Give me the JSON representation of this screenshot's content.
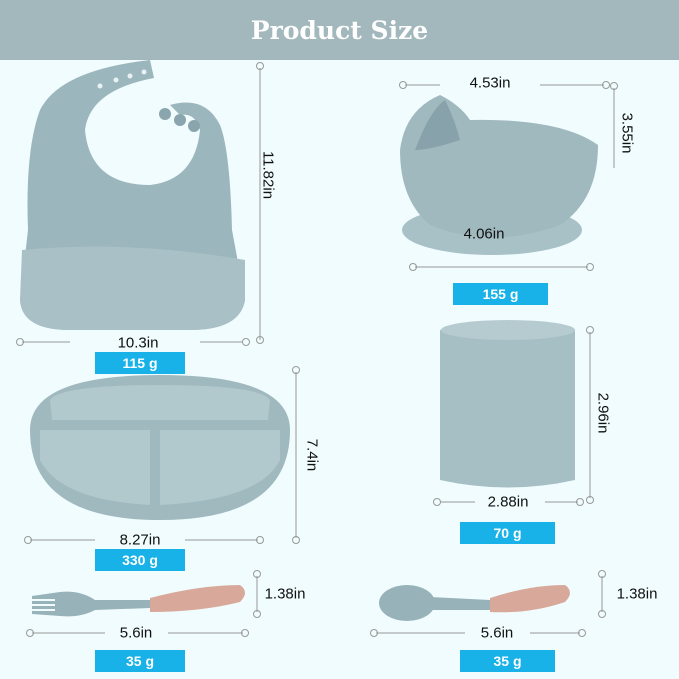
{
  "title": "Product Size",
  "colors": {
    "header": "#a2b8bc",
    "background": "#f0fcfd",
    "badge": "#18b2e8",
    "silicone": "#9fb8be",
    "wood": "#d8a99a"
  },
  "items": {
    "bib": {
      "width": "10.3in",
      "height": "11.82in",
      "weight": "115 g"
    },
    "bowl": {
      "width": "4.53in",
      "height": "3.55in",
      "base": "4.06in",
      "weight": "155 g"
    },
    "plate": {
      "width": "8.27in",
      "height": "7.4in",
      "weight": "330 g"
    },
    "cup": {
      "width": "2.88in",
      "height": "2.96in",
      "weight": "70 g"
    },
    "fork": {
      "length": "5.6in",
      "height": "1.38in",
      "weight": "35 g"
    },
    "spoon": {
      "length": "5.6in",
      "height": "1.38in",
      "weight": "35 g"
    }
  }
}
